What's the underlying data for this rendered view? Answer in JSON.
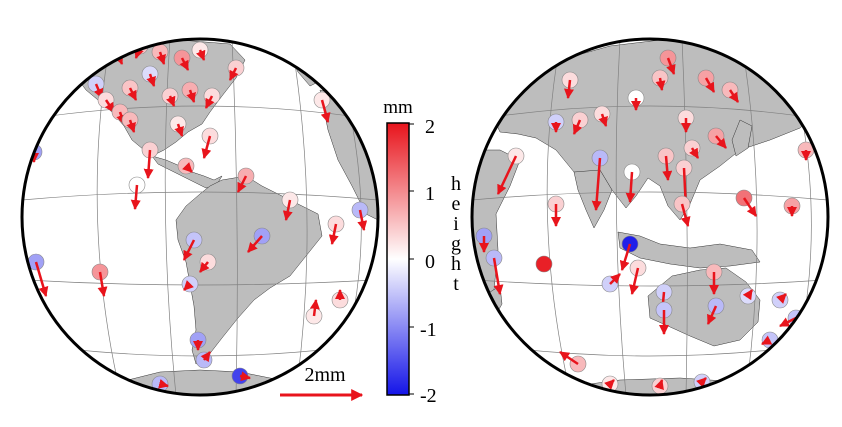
{
  "colorbar": {
    "unit": "mm",
    "title": "height",
    "ticks": [
      "2",
      "1",
      "0",
      "-1",
      "-2"
    ],
    "colors": {
      "max": "#e8141c",
      "mid": "#ffffff",
      "min": "#1414e8"
    }
  },
  "scale": {
    "label": "2mm",
    "color": "#e8141c"
  },
  "map_style": {
    "land": "#bdbdbd",
    "ocean": "#ffffff",
    "grid": "#808080",
    "vector": "#e8141c"
  }
}
